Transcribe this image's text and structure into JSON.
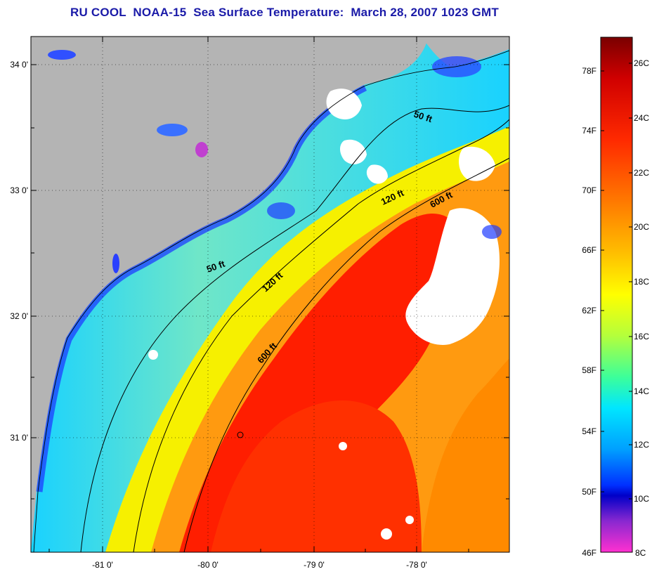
{
  "title": "RU COOL  NOAA-15  Sea Surface Temperature:  March 28, 2007 1023 GMT",
  "map": {
    "lat_labels": [
      "34 0'",
      "33 0'",
      "32 0'",
      "31 0'"
    ],
    "lon_labels": [
      "-81 0'",
      "-80 0'",
      "-79 0'",
      "-78 0'"
    ],
    "isobath_labels": [
      "50 ft",
      "120 ft",
      "600 ft",
      "50 ft",
      "120 ft",
      "600 ft"
    ],
    "colors": {
      "land": "#b4b4b4",
      "cloud": "#ffffff",
      "cold_water": "#1f3cff",
      "cool_water": "#19d2ff",
      "mid_water": "#f6f000",
      "warm_water": "#ff8a00",
      "gulf_stream": "#ff1800"
    }
  },
  "colorbar": {
    "fahrenheit_labels": [
      "78F",
      "74F",
      "70F",
      "66F",
      "62F",
      "58F",
      "54F",
      "50F",
      "46F"
    ],
    "celsius_labels": [
      "26C",
      "24C",
      "22C",
      "20C",
      "18C",
      "16C",
      "14C",
      "12C",
      "10C",
      "8C"
    ],
    "gradient_colors": [
      "#7a0000",
      "#d00000",
      "#ff2a00",
      "#ff7a00",
      "#ffbf00",
      "#ffff00",
      "#b4ff3c",
      "#3cff9a",
      "#00e6ff",
      "#00a0ff",
      "#0030ff",
      "#0000c8",
      "#8a28d0",
      "#ff30d0"
    ]
  }
}
